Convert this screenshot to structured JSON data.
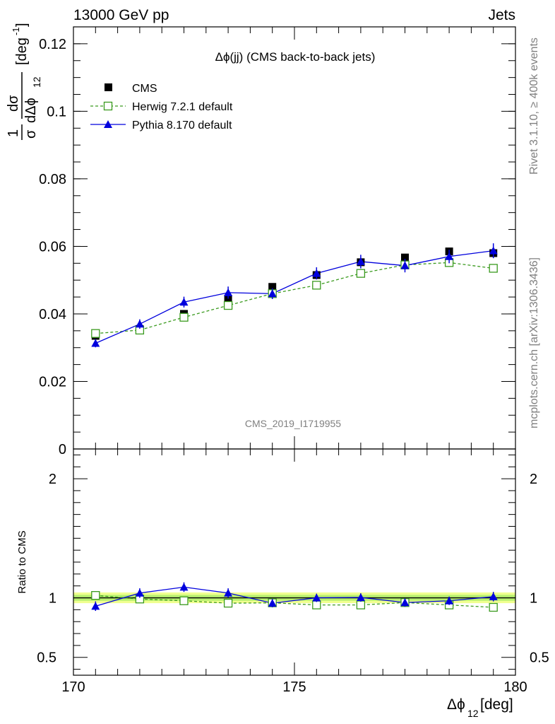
{
  "header": {
    "left": "13000 GeV pp",
    "right": "Jets"
  },
  "side_labels": {
    "rivet": "Rivet 3.1.10, ≥ 400k events",
    "mcplots": "mcplots.cern.ch [arXiv:1306.3436]"
  },
  "analysis_id": "CMS_2019_I1719955",
  "colors": {
    "data": "#000000",
    "herwig": "#3a9a1e",
    "pythia": "#0000dd",
    "band_outer": "#f0ff90",
    "band_inner": "#b8f070",
    "reference": "#000000"
  },
  "chart_data": [
    {
      "type": "scatter",
      "title": "Δϕ(jj) (CMS back-to-back jets)",
      "ylabel": "1/σ dσ/dΔϕ₁₂ [deg⁻¹]",
      "ylabel_parts": {
        "numerator": "1",
        "numerator_b": "dσ",
        "denominator": "σ",
        "denominator_b": "dΔϕ",
        "denominator_sub": "12",
        "unit": "[deg",
        "unit_sup": "-1",
        "unit_close": "]"
      },
      "xlim": [
        170,
        180
      ],
      "ylim": [
        0,
        0.125
      ],
      "y_ticks": [
        {
          "value": 0,
          "label": "0"
        },
        {
          "value": 0.02,
          "label": "0.02"
        },
        {
          "value": 0.04,
          "label": "0.04"
        },
        {
          "value": 0.06,
          "label": "0.06"
        },
        {
          "value": 0.08,
          "label": "0.08"
        },
        {
          "value": 0.1,
          "label": "0.1"
        },
        {
          "value": 0.12,
          "label": "0.12"
        }
      ],
      "x": [
        170.5,
        171.5,
        172.5,
        173.5,
        174.5,
        175.5,
        176.5,
        177.5,
        178.5,
        179.5
      ],
      "legend_placement": "top-left",
      "series": [
        {
          "name": "CMS",
          "marker": "filled-square",
          "values": [
            0.0335,
            0.0355,
            0.04,
            0.0445,
            0.048,
            0.0515,
            0.0553,
            0.0567,
            0.0585,
            0.058
          ],
          "errors": [
            0.0008,
            0.0007,
            0.0008,
            0.0008,
            0.0008,
            0.0009,
            0.001,
            0.001,
            0.001,
            0.0012
          ]
        },
        {
          "name": "Herwig 7.2.1 default",
          "marker": "open-square",
          "line": "dashed",
          "values": [
            0.0342,
            0.0352,
            0.039,
            0.0425,
            0.046,
            0.0485,
            0.052,
            0.0545,
            0.0552,
            0.0535
          ],
          "errors": [
            0.0005,
            0.0005,
            0.0005,
            0.0006,
            0.0006,
            0.0006,
            0.0007,
            0.0007,
            0.0007,
            0.0008
          ]
        },
        {
          "name": "Pythia 8.170 default",
          "marker": "filled-triangle",
          "line": "solid",
          "values": [
            0.0313,
            0.037,
            0.0435,
            0.0463,
            0.046,
            0.052,
            0.0555,
            0.0543,
            0.057,
            0.0587
          ],
          "errors": [
            0.0012,
            0.0014,
            0.0016,
            0.0018,
            0.0016,
            0.0018,
            0.002,
            0.002,
            0.002,
            0.0022
          ]
        }
      ]
    },
    {
      "type": "scatter",
      "xlabel": "Δϕ₁₂ [deg]",
      "xlabel_parts": {
        "main": "Δϕ",
        "sub": "12",
        "unit": " [deg]"
      },
      "ylabel": "Ratio to CMS",
      "xlim": [
        170,
        180
      ],
      "ylim": [
        0.35,
        2.25
      ],
      "y_ticks": [
        {
          "value": 0.5,
          "label": "0.5"
        },
        {
          "value": 1,
          "label": "1"
        },
        {
          "value": 2,
          "label": "2"
        }
      ],
      "x_ticks": [
        {
          "value": 170,
          "label": "170"
        },
        {
          "value": 175,
          "label": "175"
        },
        {
          "value": 180,
          "label": "180"
        }
      ],
      "x": [
        170.5,
        171.5,
        172.5,
        173.5,
        174.5,
        175.5,
        176.5,
        177.5,
        178.5,
        179.5
      ],
      "band": {
        "outer": [
          0.955,
          1.045
        ],
        "inner": [
          0.975,
          1.025
        ]
      },
      "series": [
        {
          "name": "Herwig 7.2.1 default",
          "values": [
            1.02,
            0.99,
            0.975,
            0.955,
            0.958,
            0.94,
            0.94,
            0.96,
            0.94,
            0.92
          ],
          "errors": [
            0.015,
            0.014,
            0.013,
            0.013,
            0.012,
            0.012,
            0.012,
            0.012,
            0.012,
            0.013
          ]
        },
        {
          "name": "Pythia 8.170 default",
          "values": [
            0.93,
            1.04,
            1.09,
            1.04,
            0.955,
            1.0,
            1.003,
            0.96,
            0.975,
            1.01
          ],
          "errors": [
            0.04,
            0.04,
            0.04,
            0.04,
            0.035,
            0.035,
            0.035,
            0.035,
            0.035,
            0.04
          ]
        }
      ]
    }
  ]
}
